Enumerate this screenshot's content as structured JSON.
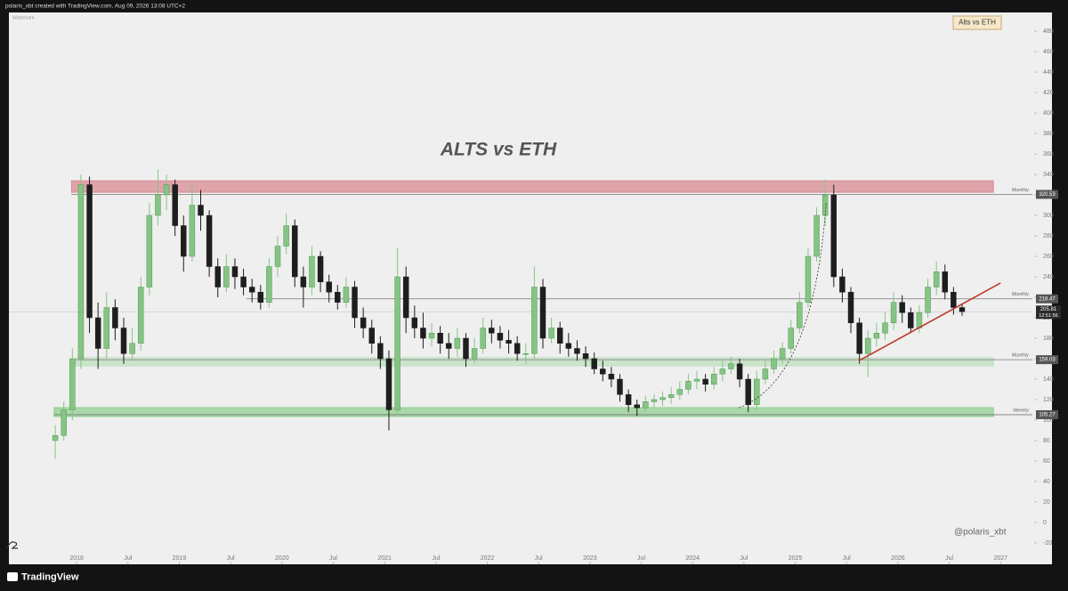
{
  "header": "polaris_xbt created with TradingView.com, Aug 09, 2026 13:08 UTC+2",
  "footer": "TradingView",
  "chart_data": {
    "type": "candlestick",
    "title": "ALTS vs ETH",
    "symbol_badge": "Alts vs ETH",
    "watermark": "Watermark",
    "signature": "@polaris_xbt",
    "up_color": "#86c486",
    "down_color": "#1e1e1e",
    "x": [
      "2017-10",
      "2017-11",
      "2017-12",
      "2018-01",
      "2018-02",
      "2018-03",
      "2018-04",
      "2018-05",
      "2018-06",
      "2018-07",
      "2018-08",
      "2018-09",
      "2018-10",
      "2018-11",
      "2018-12",
      "2019-01",
      "2019-02",
      "2019-03",
      "2019-04",
      "2019-05",
      "2019-06",
      "2019-07",
      "2019-08",
      "2019-09",
      "2019-10",
      "2019-11",
      "2019-12",
      "2020-01",
      "2020-02",
      "2020-03",
      "2020-04",
      "2020-05",
      "2020-06",
      "2020-07",
      "2020-08",
      "2020-09",
      "2020-10",
      "2020-11",
      "2020-12",
      "2021-01",
      "2021-02",
      "2021-03",
      "2021-04",
      "2021-05",
      "2021-06",
      "2021-07",
      "2021-08",
      "2021-09",
      "2021-10",
      "2021-11",
      "2021-12",
      "2022-01",
      "2022-02",
      "2022-03",
      "2022-04",
      "2022-05",
      "2022-06",
      "2022-07",
      "2022-08",
      "2022-09",
      "2022-10",
      "2022-11",
      "2022-12",
      "2023-01",
      "2023-02",
      "2023-03",
      "2023-04",
      "2023-05",
      "2023-06",
      "2023-07",
      "2023-08",
      "2023-09",
      "2023-10",
      "2023-11",
      "2023-12",
      "2024-01",
      "2024-02",
      "2024-03",
      "2024-04",
      "2024-05",
      "2024-06",
      "2024-07",
      "2024-08",
      "2024-09",
      "2024-10",
      "2024-11",
      "2024-12",
      "2025-01",
      "2025-02",
      "2025-03",
      "2025-04",
      "2025-05",
      "2025-06",
      "2025-07",
      "2025-08",
      "2025-09",
      "2025-10",
      "2025-11",
      "2025-12",
      "2026-01",
      "2026-02",
      "2026-03",
      "2026-04",
      "2026-05",
      "2026-06",
      "2026-07",
      "2026-08"
    ],
    "open": [
      80,
      85,
      110,
      160,
      330,
      200,
      170,
      210,
      190,
      165,
      175,
      230,
      300,
      320,
      330,
      290,
      260,
      310,
      300,
      250,
      230,
      250,
      240,
      230,
      225,
      215,
      250,
      270,
      290,
      240,
      230,
      260,
      235,
      225,
      215,
      230,
      200,
      190,
      175,
      160,
      110,
      240,
      200,
      190,
      180,
      185,
      175,
      170,
      180,
      160,
      170,
      190,
      185,
      178,
      175,
      165,
      165,
      230,
      180,
      190,
      175,
      170,
      165,
      160,
      150,
      145,
      140,
      125,
      115,
      112,
      118,
      120,
      122,
      125,
      130,
      138,
      140,
      135,
      145,
      150,
      155,
      140,
      115,
      140,
      150,
      160,
      170,
      190,
      215,
      260,
      300,
      320,
      240,
      225,
      195,
      165,
      180,
      185,
      195,
      215,
      205,
      190,
      205,
      230,
      245,
      225,
      210
    ],
    "high": [
      95,
      118,
      170,
      340,
      338,
      215,
      225,
      218,
      200,
      190,
      240,
      312,
      345,
      340,
      335,
      300,
      330,
      325,
      305,
      258,
      262,
      258,
      248,
      238,
      232,
      258,
      280,
      302,
      296,
      250,
      270,
      265,
      242,
      232,
      240,
      236,
      210,
      198,
      182,
      168,
      268,
      250,
      212,
      205,
      195,
      192,
      185,
      190,
      185,
      180,
      200,
      198,
      192,
      188,
      182,
      175,
      250,
      238,
      200,
      196,
      185,
      178,
      172,
      166,
      158,
      152,
      145,
      130,
      120,
      124,
      125,
      128,
      132,
      138,
      145,
      148,
      145,
      152,
      158,
      162,
      160,
      145,
      148,
      158,
      168,
      176,
      198,
      225,
      268,
      308,
      335,
      330,
      248,
      230,
      200,
      188,
      195,
      205,
      225,
      222,
      210,
      212,
      238,
      255,
      252,
      230,
      213
    ],
    "low": [
      62,
      80,
      100,
      150,
      185,
      150,
      160,
      178,
      155,
      158,
      168,
      222,
      290,
      305,
      280,
      245,
      255,
      285,
      240,
      220,
      225,
      228,
      222,
      215,
      208,
      210,
      240,
      262,
      230,
      210,
      222,
      225,
      215,
      208,
      210,
      190,
      180,
      165,
      150,
      90,
      105,
      185,
      180,
      170,
      172,
      165,
      160,
      162,
      152,
      155,
      165,
      175,
      170,
      165,
      158,
      155,
      160,
      170,
      175,
      165,
      162,
      158,
      152,
      145,
      138,
      132,
      118,
      108,
      104,
      108,
      112,
      114,
      116,
      120,
      125,
      130,
      128,
      130,
      138,
      145,
      132,
      108,
      110,
      135,
      145,
      155,
      165,
      185,
      210,
      255,
      290,
      230,
      215,
      185,
      155,
      142,
      172,
      178,
      188,
      195,
      185,
      185,
      200,
      222,
      218,
      203,
      202
    ],
    "close": [
      85,
      110,
      160,
      330,
      200,
      170,
      210,
      190,
      165,
      175,
      230,
      300,
      320,
      330,
      290,
      260,
      310,
      300,
      250,
      230,
      250,
      240,
      230,
      225,
      215,
      250,
      270,
      290,
      240,
      230,
      260,
      235,
      225,
      215,
      230,
      200,
      190,
      175,
      160,
      110,
      240,
      200,
      190,
      180,
      185,
      175,
      170,
      180,
      160,
      170,
      190,
      185,
      178,
      175,
      165,
      165,
      230,
      180,
      190,
      175,
      170,
      165,
      160,
      150,
      145,
      140,
      125,
      115,
      112,
      118,
      120,
      122,
      125,
      130,
      138,
      140,
      135,
      145,
      150,
      155,
      140,
      115,
      140,
      150,
      160,
      170,
      190,
      215,
      260,
      300,
      320,
      240,
      225,
      195,
      165,
      180,
      185,
      195,
      215,
      205,
      190,
      205,
      230,
      245,
      225,
      210,
      206
    ],
    "xlim": [
      2017.34,
      2027.31
    ],
    "xticks": [
      2018,
      {
        "value": 2018.5,
        "label": "Jul"
      },
      2019,
      {
        "value": 2019.5,
        "label": "Jul"
      },
      2020,
      {
        "value": 2020.5,
        "label": "Jul"
      },
      2021,
      {
        "value": 2021.5,
        "label": "Jul"
      },
      2022,
      {
        "value": 2022.5,
        "label": "Jul"
      },
      2023,
      {
        "value": 2023.5,
        "label": "Jul"
      },
      2024,
      {
        "value": 2024.5,
        "label": "Jul"
      },
      2025,
      {
        "value": 2025.5,
        "label": "Jul"
      },
      2026,
      {
        "value": 2026.5,
        "label": "Jul"
      },
      2027
    ],
    "ylim": [
      -40.9,
      498.3
    ],
    "yticks": [
      480,
      460,
      440,
      420,
      400,
      380,
      360,
      340,
      320,
      300,
      280,
      260,
      240,
      220,
      200,
      180,
      160,
      140,
      120,
      100,
      80,
      60,
      40,
      20,
      0,
      -20
    ],
    "zones": [
      {
        "from": 322.6,
        "to": 333.8,
        "start": 2017.95,
        "end": 2026.93,
        "color": "#d98a93"
      },
      {
        "from": 153,
        "to": 161,
        "start": 2017.99,
        "end": 2026.93,
        "color": "#bfe0bf"
      },
      {
        "from": 103.5,
        "to": 112.2,
        "start": 2017.78,
        "end": 2026.93,
        "color": "#90d090"
      }
    ],
    "levels": [
      {
        "value": 320.53,
        "tag": "Monthly",
        "start": 2017.95
      },
      {
        "value": 218.47,
        "tag": "Monthly",
        "start": 2019.65
      },
      {
        "value": 159.03,
        "tag": "Monthly",
        "start": 2017.99
      },
      {
        "value": 105.27,
        "tag": "Weekly",
        "start": 2017.78
      }
    ],
    "last_price": {
      "value": 205.81,
      "countdown": "12:51:56"
    },
    "trendline": {
      "color": "#c0392b",
      "points": [
        [
          2025.62,
          158
        ],
        [
          2027.0,
          234
        ]
      ]
    },
    "curve": {
      "points": [
        [
          2024.45,
          112
        ],
        [
          2025.18,
          140
        ],
        [
          2025.3,
          312
        ]
      ]
    }
  }
}
